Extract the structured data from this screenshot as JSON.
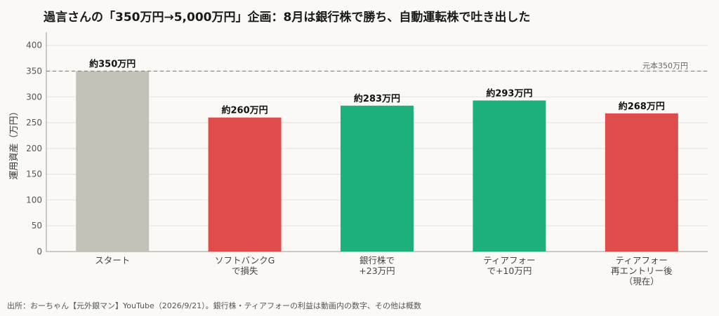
{
  "title": "過言さんの「350万円→5,000万円」企画：8月は銀行株で勝ち、自動運転株で吐き出した",
  "source": "出所：おーちゃん【元外銀マン】YouTube（2026/9/21）。銀行株・ティアフォーの利益は動画内の数字、その他は概数",
  "chart_data": {
    "type": "bar",
    "categories": [
      [
        "スタート"
      ],
      [
        "ソフトバンクG",
        "で損失"
      ],
      [
        "銀行株で",
        "+23万円"
      ],
      [
        "ティアフォー",
        "で+10万円"
      ],
      [
        "ティアフォー",
        "再エントリー後",
        "（現在）"
      ]
    ],
    "values": [
      350,
      260,
      283,
      293,
      268
    ],
    "data_labels": [
      "約350万円",
      "約260万円",
      "約283万円",
      "約293万円",
      "約268万円"
    ],
    "colors": [
      "#c2c2b6",
      "#e04b4b",
      "#1db07a",
      "#1db07a",
      "#e04b4b"
    ],
    "ylabel": "運用資産（万円）",
    "xlabel": "",
    "ylim": [
      0,
      420
    ],
    "yticks": [
      0,
      50,
      100,
      150,
      200,
      250,
      300,
      350,
      400
    ],
    "grid": true,
    "reference_line": {
      "value": 350,
      "label": "元本350万円",
      "color": "#888888"
    }
  }
}
